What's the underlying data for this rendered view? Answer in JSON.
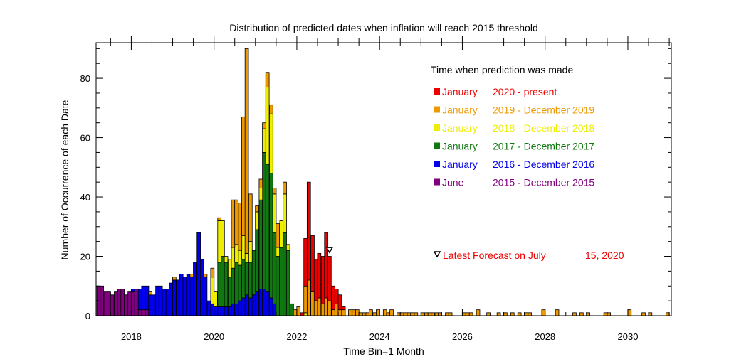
{
  "chart_data": {
    "type": "bar",
    "title": "Distribution of predicted dates when inflation will reach 2015 threshold",
    "xlabel": "Time Bin=1 Month",
    "ylabel": "Number of Occurrence of each Date",
    "xlim": [
      2017.15,
      2031.05
    ],
    "ylim": [
      0,
      92
    ],
    "x_ticks": [
      2018,
      2020,
      2022,
      2024,
      2026,
      2028,
      2030
    ],
    "y_ticks": [
      0,
      20,
      40,
      60,
      80
    ],
    "stacked": true,
    "legend_title": "Time when prediction was made",
    "legend_placement": "upper-right",
    "series": [
      {
        "name": "June 2015 - December 2015",
        "label_parts": [
          "June",
          "2015 - December  2015"
        ],
        "color": "#800080",
        "points": [
          [
            2017.21,
            10
          ],
          [
            2017.29,
            10
          ],
          [
            2017.38,
            8
          ],
          [
            2017.46,
            8
          ],
          [
            2017.54,
            7
          ],
          [
            2017.63,
            8
          ],
          [
            2017.71,
            9
          ],
          [
            2017.79,
            9
          ],
          [
            2017.88,
            7
          ],
          [
            2017.96,
            8
          ],
          [
            2018.04,
            8
          ],
          [
            2018.13,
            9
          ],
          [
            2018.21,
            2
          ],
          [
            2018.29,
            2
          ],
          [
            2018.38,
            2
          ]
        ]
      },
      {
        "name": "January 2016 - December 2016",
        "label_parts": [
          "January",
          "2016 - December  2016"
        ],
        "color": "#0000ee",
        "points": [
          [
            2018.04,
            1
          ],
          [
            2018.13,
            0
          ],
          [
            2018.21,
            7
          ],
          [
            2018.29,
            8
          ],
          [
            2018.38,
            8
          ],
          [
            2018.46,
            7
          ],
          [
            2018.54,
            7
          ],
          [
            2018.63,
            10
          ],
          [
            2018.71,
            10
          ],
          [
            2018.79,
            9
          ],
          [
            2018.88,
            9
          ],
          [
            2018.96,
            11
          ],
          [
            2019.04,
            12
          ],
          [
            2019.13,
            12
          ],
          [
            2019.21,
            14
          ],
          [
            2019.29,
            13
          ],
          [
            2019.38,
            14
          ],
          [
            2019.46,
            13
          ],
          [
            2019.54,
            18
          ],
          [
            2019.63,
            28
          ],
          [
            2019.71,
            19
          ],
          [
            2019.79,
            13
          ],
          [
            2019.88,
            5
          ],
          [
            2019.96,
            4
          ],
          [
            2020.04,
            3
          ],
          [
            2020.13,
            3
          ],
          [
            2020.21,
            3
          ],
          [
            2020.29,
            3
          ],
          [
            2020.38,
            3
          ],
          [
            2020.46,
            4
          ],
          [
            2020.54,
            4
          ],
          [
            2020.63,
            5
          ],
          [
            2020.71,
            6
          ],
          [
            2020.79,
            7
          ],
          [
            2020.88,
            6
          ],
          [
            2020.96,
            7
          ],
          [
            2021.04,
            8
          ],
          [
            2021.13,
            9
          ],
          [
            2021.21,
            9
          ],
          [
            2021.29,
            8
          ],
          [
            2021.38,
            6
          ],
          [
            2021.46,
            4
          ]
        ]
      },
      {
        "name": "January 2017 - December 2017",
        "label_parts": [
          "January",
          "2017 - December  2017"
        ],
        "color": "#117711",
        "points": [
          [
            2020.13,
            15
          ],
          [
            2020.21,
            17
          ],
          [
            2020.29,
            15
          ],
          [
            2020.38,
            10
          ],
          [
            2020.46,
            12
          ],
          [
            2020.54,
            14
          ],
          [
            2020.63,
            12
          ],
          [
            2020.71,
            13
          ],
          [
            2020.79,
            11
          ],
          [
            2020.88,
            12
          ],
          [
            2020.96,
            15
          ],
          [
            2021.04,
            21
          ],
          [
            2021.13,
            30
          ],
          [
            2021.21,
            46
          ],
          [
            2021.29,
            43
          ],
          [
            2021.38,
            42
          ],
          [
            2021.46,
            24
          ],
          [
            2021.54,
            20
          ],
          [
            2021.63,
            23
          ],
          [
            2021.71,
            28
          ],
          [
            2021.79,
            22
          ],
          [
            2021.88,
            4
          ]
        ]
      },
      {
        "name": "January 2018 - December 2018",
        "label_parts": [
          "January",
          "2018 - December  2018"
        ],
        "color": "#eeee00",
        "points": [
          [
            2019.96,
            9
          ],
          [
            2020.04,
            5
          ],
          [
            2020.13,
            14
          ],
          [
            2020.21,
            12
          ],
          [
            2020.29,
            2
          ],
          [
            2020.38,
            6
          ],
          [
            2020.46,
            7
          ],
          [
            2020.54,
            6
          ],
          [
            2020.63,
            5
          ],
          [
            2020.71,
            8
          ],
          [
            2020.79,
            3
          ],
          [
            2020.88,
            7
          ],
          [
            2021.04,
            6
          ],
          [
            2021.13,
            4
          ],
          [
            2021.21,
            8
          ],
          [
            2021.29,
            26
          ],
          [
            2021.38,
            20
          ],
          [
            2021.46,
            13
          ],
          [
            2021.54,
            3
          ],
          [
            2021.63,
            9
          ],
          [
            2021.71,
            13
          ],
          [
            2021.79,
            2
          ],
          [
            2022.21,
            1
          ]
        ]
      },
      {
        "name": "January 2019 - December 2019",
        "label_parts": [
          "January",
          "2019 - December  2019"
        ],
        "color": "#ee9900",
        "points": [
          [
            2018.46,
            1
          ],
          [
            2019.04,
            1
          ],
          [
            2019.46,
            1
          ],
          [
            2019.79,
            1
          ],
          [
            2019.96,
            3
          ],
          [
            2020.13,
            1
          ],
          [
            2020.46,
            16
          ],
          [
            2020.54,
            15
          ],
          [
            2020.63,
            16
          ],
          [
            2020.71,
            40
          ],
          [
            2020.79,
            69
          ],
          [
            2020.88,
            16
          ],
          [
            2021.04,
            2
          ],
          [
            2021.13,
            3
          ],
          [
            2021.21,
            2
          ],
          [
            2021.29,
            5
          ],
          [
            2021.38,
            3
          ],
          [
            2021.46,
            2
          ],
          [
            2021.54,
            8
          ],
          [
            2021.71,
            4
          ],
          [
            2021.96,
            2
          ],
          [
            2022.04,
            3
          ],
          [
            2022.21,
            9
          ],
          [
            2022.29,
            12
          ],
          [
            2022.38,
            8
          ],
          [
            2022.46,
            5
          ],
          [
            2022.54,
            6
          ],
          [
            2022.63,
            4
          ],
          [
            2022.71,
            6
          ],
          [
            2022.79,
            5
          ],
          [
            2022.88,
            2
          ],
          [
            2022.96,
            4
          ],
          [
            2023.04,
            2
          ],
          [
            2023.13,
            2
          ],
          [
            2023.29,
            2
          ],
          [
            2023.38,
            2
          ],
          [
            2023.46,
            2
          ],
          [
            2023.54,
            1
          ],
          [
            2023.63,
            1
          ],
          [
            2023.71,
            1
          ],
          [
            2023.79,
            2
          ],
          [
            2023.88,
            1
          ],
          [
            2023.96,
            2
          ],
          [
            2024.13,
            2
          ],
          [
            2024.21,
            1
          ],
          [
            2024.29,
            2
          ],
          [
            2024.46,
            1
          ],
          [
            2024.54,
            1
          ],
          [
            2024.63,
            1
          ],
          [
            2024.71,
            1
          ],
          [
            2024.79,
            1
          ],
          [
            2024.88,
            1
          ],
          [
            2025.04,
            1
          ],
          [
            2025.13,
            1
          ],
          [
            2025.21,
            1
          ],
          [
            2025.29,
            1
          ],
          [
            2025.38,
            1
          ],
          [
            2025.46,
            1
          ],
          [
            2025.63,
            1
          ],
          [
            2025.71,
            1
          ],
          [
            2026.04,
            1
          ],
          [
            2026.13,
            1
          ],
          [
            2026.21,
            1
          ],
          [
            2026.38,
            2
          ],
          [
            2026.63,
            1
          ],
          [
            2026.88,
            1
          ],
          [
            2027.04,
            1
          ],
          [
            2027.21,
            1
          ],
          [
            2027.38,
            1
          ],
          [
            2027.54,
            1
          ],
          [
            2027.63,
            1
          ],
          [
            2027.96,
            2
          ],
          [
            2028.29,
            2
          ],
          [
            2028.71,
            1
          ],
          [
            2028.88,
            1
          ],
          [
            2029.04,
            1
          ],
          [
            2029.46,
            1
          ],
          [
            2029.54,
            1
          ],
          [
            2030.04,
            2
          ],
          [
            2030.38,
            1
          ],
          [
            2030.54,
            1
          ],
          [
            2030.96,
            1
          ]
        ]
      },
      {
        "name": "January 2020 - present",
        "label_parts": [
          "January",
          "2020 - present"
        ],
        "color": "#ee0000",
        "points": [
          [
            2022.13,
            1
          ],
          [
            2022.21,
            16
          ],
          [
            2022.29,
            33
          ],
          [
            2022.38,
            19
          ],
          [
            2022.46,
            14
          ],
          [
            2022.54,
            15
          ],
          [
            2022.63,
            16
          ],
          [
            2022.71,
            22
          ],
          [
            2022.79,
            15
          ],
          [
            2022.88,
            8
          ],
          [
            2022.96,
            5
          ],
          [
            2023.04,
            5
          ],
          [
            2023.13,
            1
          ]
        ]
      }
    ],
    "latest_forecast": {
      "label_parts": [
        "Latest Forecast on July",
        "15, 2020"
      ],
      "x": 2022.79,
      "y": 22,
      "color": "#ee0000"
    }
  }
}
